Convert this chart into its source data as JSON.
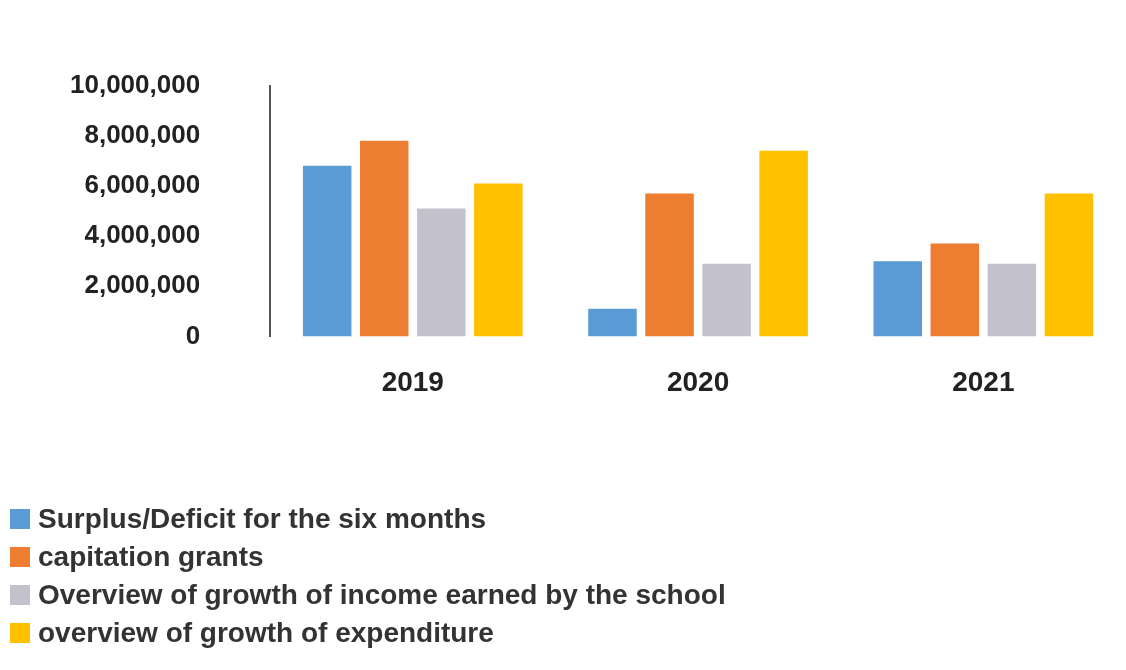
{
  "chart_data": {
    "type": "bar",
    "categories": [
      "2019",
      "2020",
      "2021"
    ],
    "series": [
      {
        "name": "Surplus/Deficit for the six months",
        "color": "#5b9bd5",
        "values": [
          6800000,
          1100000,
          3000000
        ]
      },
      {
        "name": "capitation grants",
        "color": "#ed7d31",
        "values": [
          7800000,
          5700000,
          3700000
        ]
      },
      {
        "name": "Overview of growth of income earned by the school",
        "color": "#c3c1cc",
        "values": [
          5100000,
          2900000,
          2900000
        ]
      },
      {
        "name": "overview of growth of expenditure",
        "color": "#ffc000",
        "values": [
          6100000,
          7400000,
          5700000
        ]
      }
    ],
    "ylim": [
      0,
      10000000
    ],
    "yticks": [
      0,
      {
        "value": 2000000,
        "label": "2,000,000"
      },
      {
        "value": 4000000,
        "label": "4,000,000"
      },
      {
        "value": 6000000,
        "label": "6,000,000"
      },
      {
        "value": 8000000,
        "label": "8,000,000"
      },
      {
        "value": 10000000,
        "label": "10,000,000"
      }
    ],
    "grid": false,
    "legend": "bottom left"
  }
}
